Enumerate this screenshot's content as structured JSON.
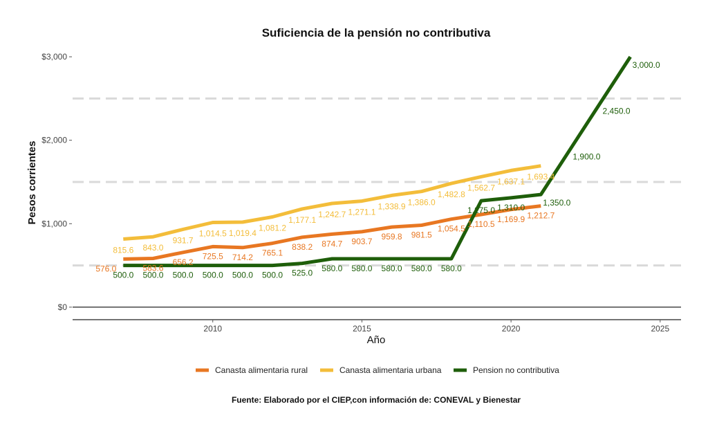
{
  "chart_data": {
    "type": "line",
    "title": "Suficiencia de la pensión no contributiva",
    "xlabel": "Año",
    "ylabel": "Pesos corrientes",
    "source": "Fuente: Elaborado por el CIEP,con información de: CONEVAL y Bienestar",
    "xlim": [
      2005.3,
      2025.7
    ],
    "ylim": [
      -150,
      3100
    ],
    "x_ticks": [
      2010,
      2015,
      2020,
      2025
    ],
    "x_tick_labels": [
      "2010",
      "2015",
      "2020",
      "2025"
    ],
    "y_ticks": [
      0,
      1000,
      2000,
      3000
    ],
    "y_tick_labels": [
      "$0",
      "$1,000",
      "$2,000",
      "$3,000"
    ],
    "dashed_reference_lines": [
      500,
      1500,
      2500
    ],
    "legend_position": "bottom",
    "series": [
      {
        "name": "Canasta alimentaria rural",
        "color": "#e87722",
        "x": [
          2007,
          2008,
          2009,
          2010,
          2011,
          2012,
          2013,
          2014,
          2015,
          2016,
          2017,
          2018,
          2019,
          2020,
          2021
        ],
        "values": [
          576.0,
          583.6,
          656.2,
          725.5,
          714.2,
          765.1,
          838.2,
          874.7,
          903.7,
          959.8,
          981.5,
          1054.5,
          1110.5,
          1169.9,
          1212.7
        ],
        "labels": [
          "576.0",
          "583.6",
          "656.2",
          "725.5",
          "714.2",
          "765.1",
          "838.2",
          "874.7",
          "903.7",
          "959.8",
          "981.5",
          "1,054.5",
          "1,110.5",
          "1,169.9",
          "1,212.7"
        ]
      },
      {
        "name": "Canasta alimentaria urbana",
        "color": "#f3bd3a",
        "x": [
          2007,
          2008,
          2009,
          2010,
          2011,
          2012,
          2013,
          2014,
          2015,
          2016,
          2017,
          2018,
          2019,
          2020,
          2021
        ],
        "values": [
          815.6,
          843.0,
          931.7,
          1014.5,
          1019.4,
          1081.2,
          1177.1,
          1242.7,
          1271.1,
          1338.9,
          1386.0,
          1482.8,
          1562.7,
          1637.1,
          1693.4
        ],
        "labels": [
          "815.6",
          "843.0",
          "931.7",
          "1,014.5",
          "1,019.4",
          "1,081.2",
          "1,177.1",
          "1,242.7",
          "1,271.1",
          "1,338.9",
          "1,386.0",
          "1,482.8",
          "1,562.7",
          "1,637.1",
          "1,693.4"
        ]
      },
      {
        "name": "Pension no contributiva",
        "color": "#1e5e0a",
        "x": [
          2007,
          2008,
          2009,
          2010,
          2011,
          2012,
          2013,
          2014,
          2015,
          2016,
          2017,
          2018,
          2019,
          2020,
          2021,
          2022,
          2023,
          2024
        ],
        "values": [
          500,
          500,
          500,
          500,
          500,
          500,
          525,
          580,
          580,
          580,
          580,
          580,
          1275,
          1310,
          1350,
          1900,
          2450,
          3000
        ],
        "labels": [
          "500.0",
          "500.0",
          "500.0",
          "500.0",
          "500.0",
          "500.0",
          "525.0",
          "580.0",
          "580.0",
          "580.0",
          "580.0",
          "580.0",
          "1,275.0",
          "1,310.0",
          "1,350.0",
          "1,900.0",
          "2,450.0",
          "3,000.0"
        ]
      }
    ]
  }
}
